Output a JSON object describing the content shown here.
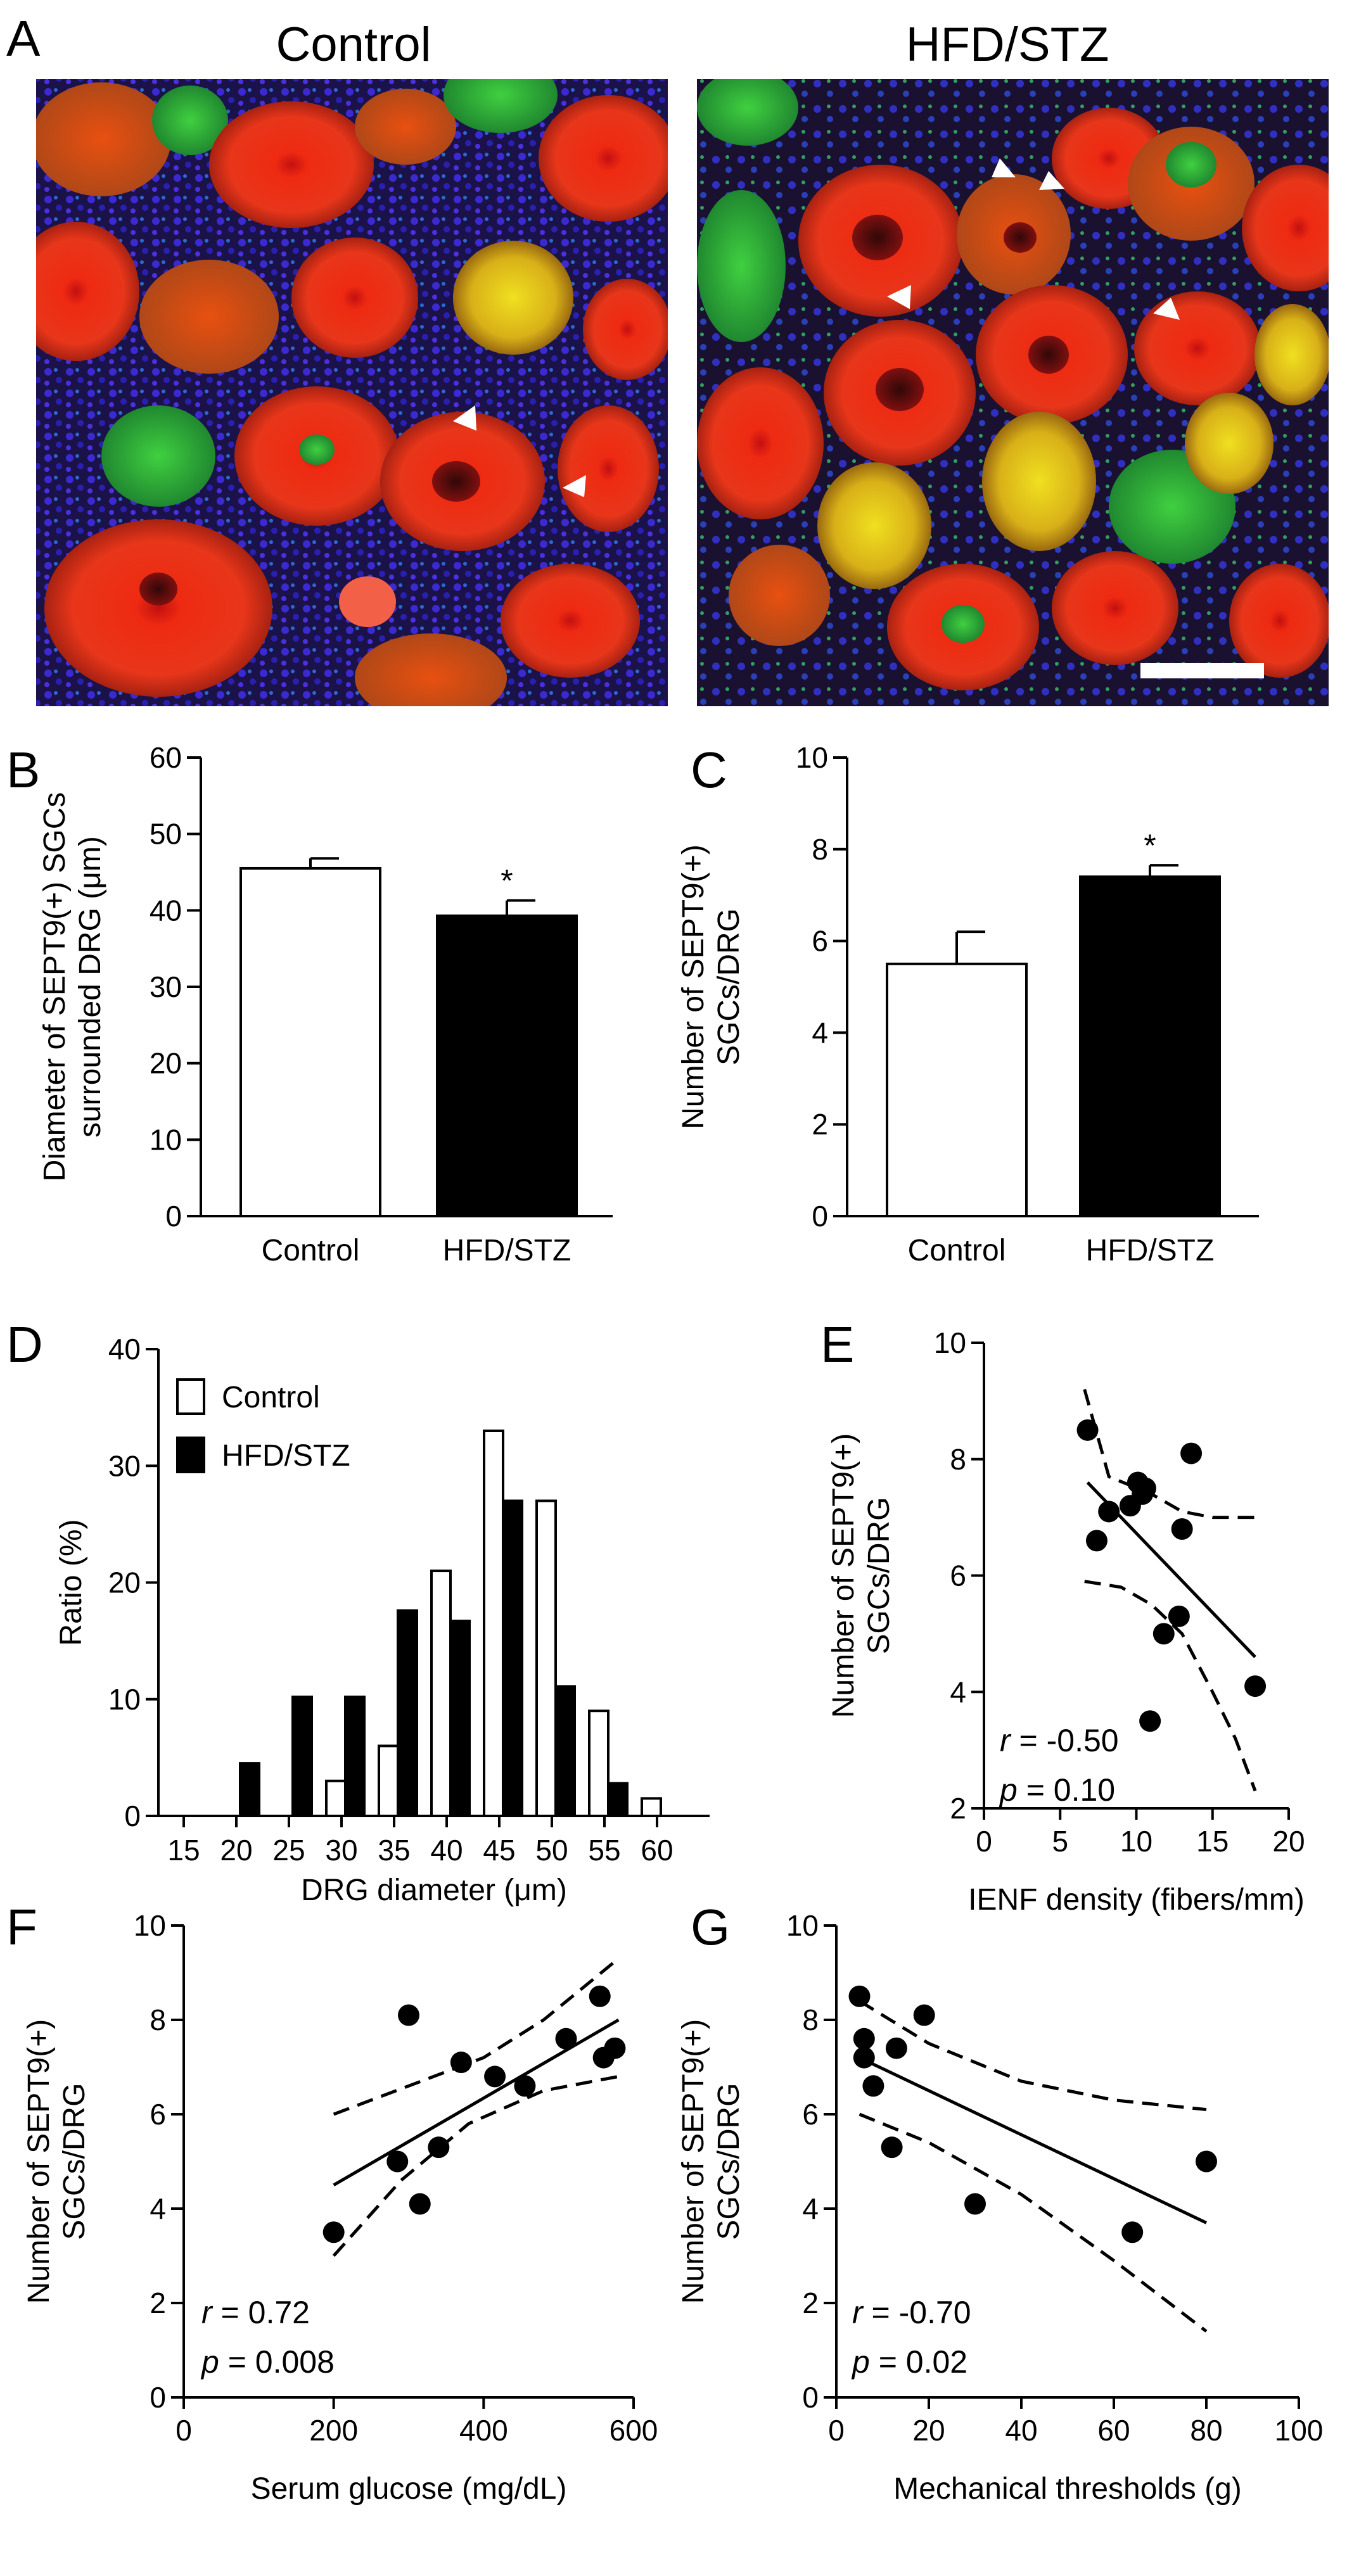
{
  "panel_a": {
    "label": "A",
    "left_title": "Control",
    "right_title": "HFD/STZ"
  },
  "chart_data": [
    {
      "panel": "B",
      "type": "bar",
      "categories": [
        "Control",
        "HFD/STZ"
      ],
      "values": [
        45.5,
        39.3
      ],
      "errors": [
        1.3,
        2.0
      ],
      "significance": [
        "",
        "*"
      ],
      "fills": [
        "#ffffff",
        "#000000"
      ],
      "ylabel": "Diameter of SEPT9(+) SGCs surrounded DRG (μm)",
      "ylabel_lines": [
        "Diameter of SEPT9(+) SGCs",
        "surrounded DRG (μm)"
      ],
      "xlabel": "",
      "ylim": [
        0,
        60
      ],
      "yticks": [
        "0",
        "10",
        "20",
        "30",
        "40",
        "50",
        "60"
      ]
    },
    {
      "panel": "C",
      "type": "bar",
      "categories": [
        "Control",
        "HFD/STZ"
      ],
      "values": [
        5.5,
        7.4
      ],
      "errors": [
        0.7,
        0.25
      ],
      "significance": [
        "",
        "*"
      ],
      "fills": [
        "#ffffff",
        "#000000"
      ],
      "ylabel": "Number of SEPT9(+) SGCs/DRG",
      "ylabel_lines": [
        "Number of SEPT9(+)",
        "SGCs/DRG"
      ],
      "xlabel": "",
      "ylim": [
        0,
        10
      ],
      "yticks": [
        "0",
        "2",
        "4",
        "6",
        "8",
        "10"
      ]
    },
    {
      "panel": "D",
      "type": "bar",
      "categories": [
        "15",
        "20",
        "25",
        "30",
        "35",
        "40",
        "45",
        "50",
        "55",
        "60"
      ],
      "series": [
        {
          "name": "Control",
          "color": "#ffffff",
          "values": [
            0,
            0,
            0,
            3,
            6,
            21,
            33,
            27,
            9,
            1.5
          ]
        },
        {
          "name": "HFD/STZ",
          "color": "#000000",
          "values": [
            0,
            4.5,
            10.2,
            10.2,
            17.6,
            16.7,
            27,
            11.1,
            2.8,
            0
          ]
        }
      ],
      "xlabel": "DRG diameter (μm)",
      "ylabel": "Ratio (%)",
      "ylim": [
        0,
        40
      ],
      "yticks": [
        "0",
        "10",
        "20",
        "30",
        "40"
      ],
      "legend": "top-left"
    },
    {
      "panel": "E",
      "type": "scatter",
      "points": [
        [
          6.8,
          8.5
        ],
        [
          7.4,
          6.6
        ],
        [
          8.2,
          7.1
        ],
        [
          9.6,
          7.2
        ],
        [
          10.1,
          7.6
        ],
        [
          10.4,
          7.4
        ],
        [
          10.6,
          7.5
        ],
        [
          13.0,
          6.8
        ],
        [
          13.6,
          8.1
        ],
        [
          11.8,
          5.0
        ],
        [
          12.8,
          5.3
        ],
        [
          10.9,
          3.5
        ],
        [
          17.8,
          4.1
        ]
      ],
      "fit_line": [
        [
          6.8,
          7.6
        ],
        [
          17.8,
          4.6
        ]
      ],
      "ci_upper": [
        [
          6.6,
          9.2
        ],
        [
          8.2,
          7.7
        ],
        [
          11.0,
          7.4
        ],
        [
          13.0,
          7.1
        ],
        [
          15.0,
          7.0
        ],
        [
          18.0,
          7.0
        ]
      ],
      "ci_lower": [
        [
          6.6,
          5.9
        ],
        [
          9.0,
          5.8
        ],
        [
          11.0,
          5.5
        ],
        [
          13.0,
          5.0
        ],
        [
          15.0,
          4.0
        ],
        [
          16.5,
          3.2
        ],
        [
          17.8,
          2.3
        ]
      ],
      "xlabel": "IENF density (fibers/mm)",
      "ylabel": "Number of SEPT9(+) SGCs/DRG",
      "ylabel_lines": [
        "Number of SEPT9(+)",
        "SGCs/DRG"
      ],
      "xlim": [
        0,
        20
      ],
      "ylim": [
        2,
        10
      ],
      "xticks": [
        "0",
        "5",
        "10",
        "15",
        "20"
      ],
      "yticks": [
        "2",
        "4",
        "6",
        "8",
        "10"
      ],
      "r_symbol": "r",
      "r_text": " = -0.50",
      "p_symbol": "p",
      "p_text": " = 0.10"
    },
    {
      "panel": "F",
      "type": "scatter",
      "points": [
        [
          200,
          3.5
        ],
        [
          285,
          5.0
        ],
        [
          300,
          8.1
        ],
        [
          315,
          4.1
        ],
        [
          340,
          5.3
        ],
        [
          370,
          7.1
        ],
        [
          415,
          6.8
        ],
        [
          455,
          6.6
        ],
        [
          510,
          7.6
        ],
        [
          555,
          8.5
        ],
        [
          560,
          7.2
        ],
        [
          575,
          7.4
        ]
      ],
      "fit_line": [
        [
          200,
          4.5
        ],
        [
          580,
          8.0
        ]
      ],
      "ci_upper": [
        [
          200,
          6.0
        ],
        [
          300,
          6.6
        ],
        [
          400,
          7.2
        ],
        [
          480,
          8.0
        ],
        [
          580,
          9.3
        ]
      ],
      "ci_lower": [
        [
          200,
          3.0
        ],
        [
          290,
          4.6
        ],
        [
          380,
          5.8
        ],
        [
          480,
          6.5
        ],
        [
          580,
          6.8
        ]
      ],
      "xlabel": "Serum glucose (mg/dL)",
      "ylabel": "Number of SEPT9(+) SGCs/DRG",
      "ylabel_lines": [
        "Number of SEPT9(+)",
        "SGCs/DRG"
      ],
      "xlim": [
        0,
        600
      ],
      "ylim": [
        0,
        10
      ],
      "xticks": [
        "0",
        "200",
        "400",
        "600"
      ],
      "yticks": [
        "0",
        "2",
        "4",
        "6",
        "8",
        "10"
      ],
      "r_symbol": "r",
      "r_text": " = 0.72",
      "p_symbol": "p",
      "p_text": " = 0.008"
    },
    {
      "panel": "G",
      "type": "scatter",
      "points": [
        [
          5,
          8.5
        ],
        [
          6,
          7.6
        ],
        [
          6,
          7.2
        ],
        [
          8,
          6.6
        ],
        [
          12,
          5.3
        ],
        [
          13,
          7.4
        ],
        [
          19,
          8.1
        ],
        [
          30,
          4.1
        ],
        [
          64,
          3.5
        ],
        [
          80,
          5.0
        ]
      ],
      "fit_line": [
        [
          5,
          7.2
        ],
        [
          80,
          3.7
        ]
      ],
      "ci_upper": [
        [
          5,
          8.4
        ],
        [
          20,
          7.5
        ],
        [
          40,
          6.7
        ],
        [
          60,
          6.3
        ],
        [
          80,
          6.1
        ]
      ],
      "ci_lower": [
        [
          5,
          6.0
        ],
        [
          20,
          5.4
        ],
        [
          40,
          4.3
        ],
        [
          60,
          2.9
        ],
        [
          80,
          1.4
        ]
      ],
      "xlabel": "Mechanical thresholds (g)",
      "ylabel": "Number of SEPT9(+) SGCs/DRG",
      "ylabel_lines": [
        "Number of SEPT9(+)",
        "SGCs/DRG"
      ],
      "xlim": [
        0,
        100
      ],
      "ylim": [
        0,
        10
      ],
      "xticks": [
        "0",
        "20",
        "40",
        "60",
        "80",
        "100"
      ],
      "yticks": [
        "0",
        "2",
        "4",
        "6",
        "8",
        "10"
      ],
      "r_symbol": "r",
      "r_text": " = -0.70",
      "p_symbol": "p",
      "p_text": " = 0.02"
    }
  ]
}
